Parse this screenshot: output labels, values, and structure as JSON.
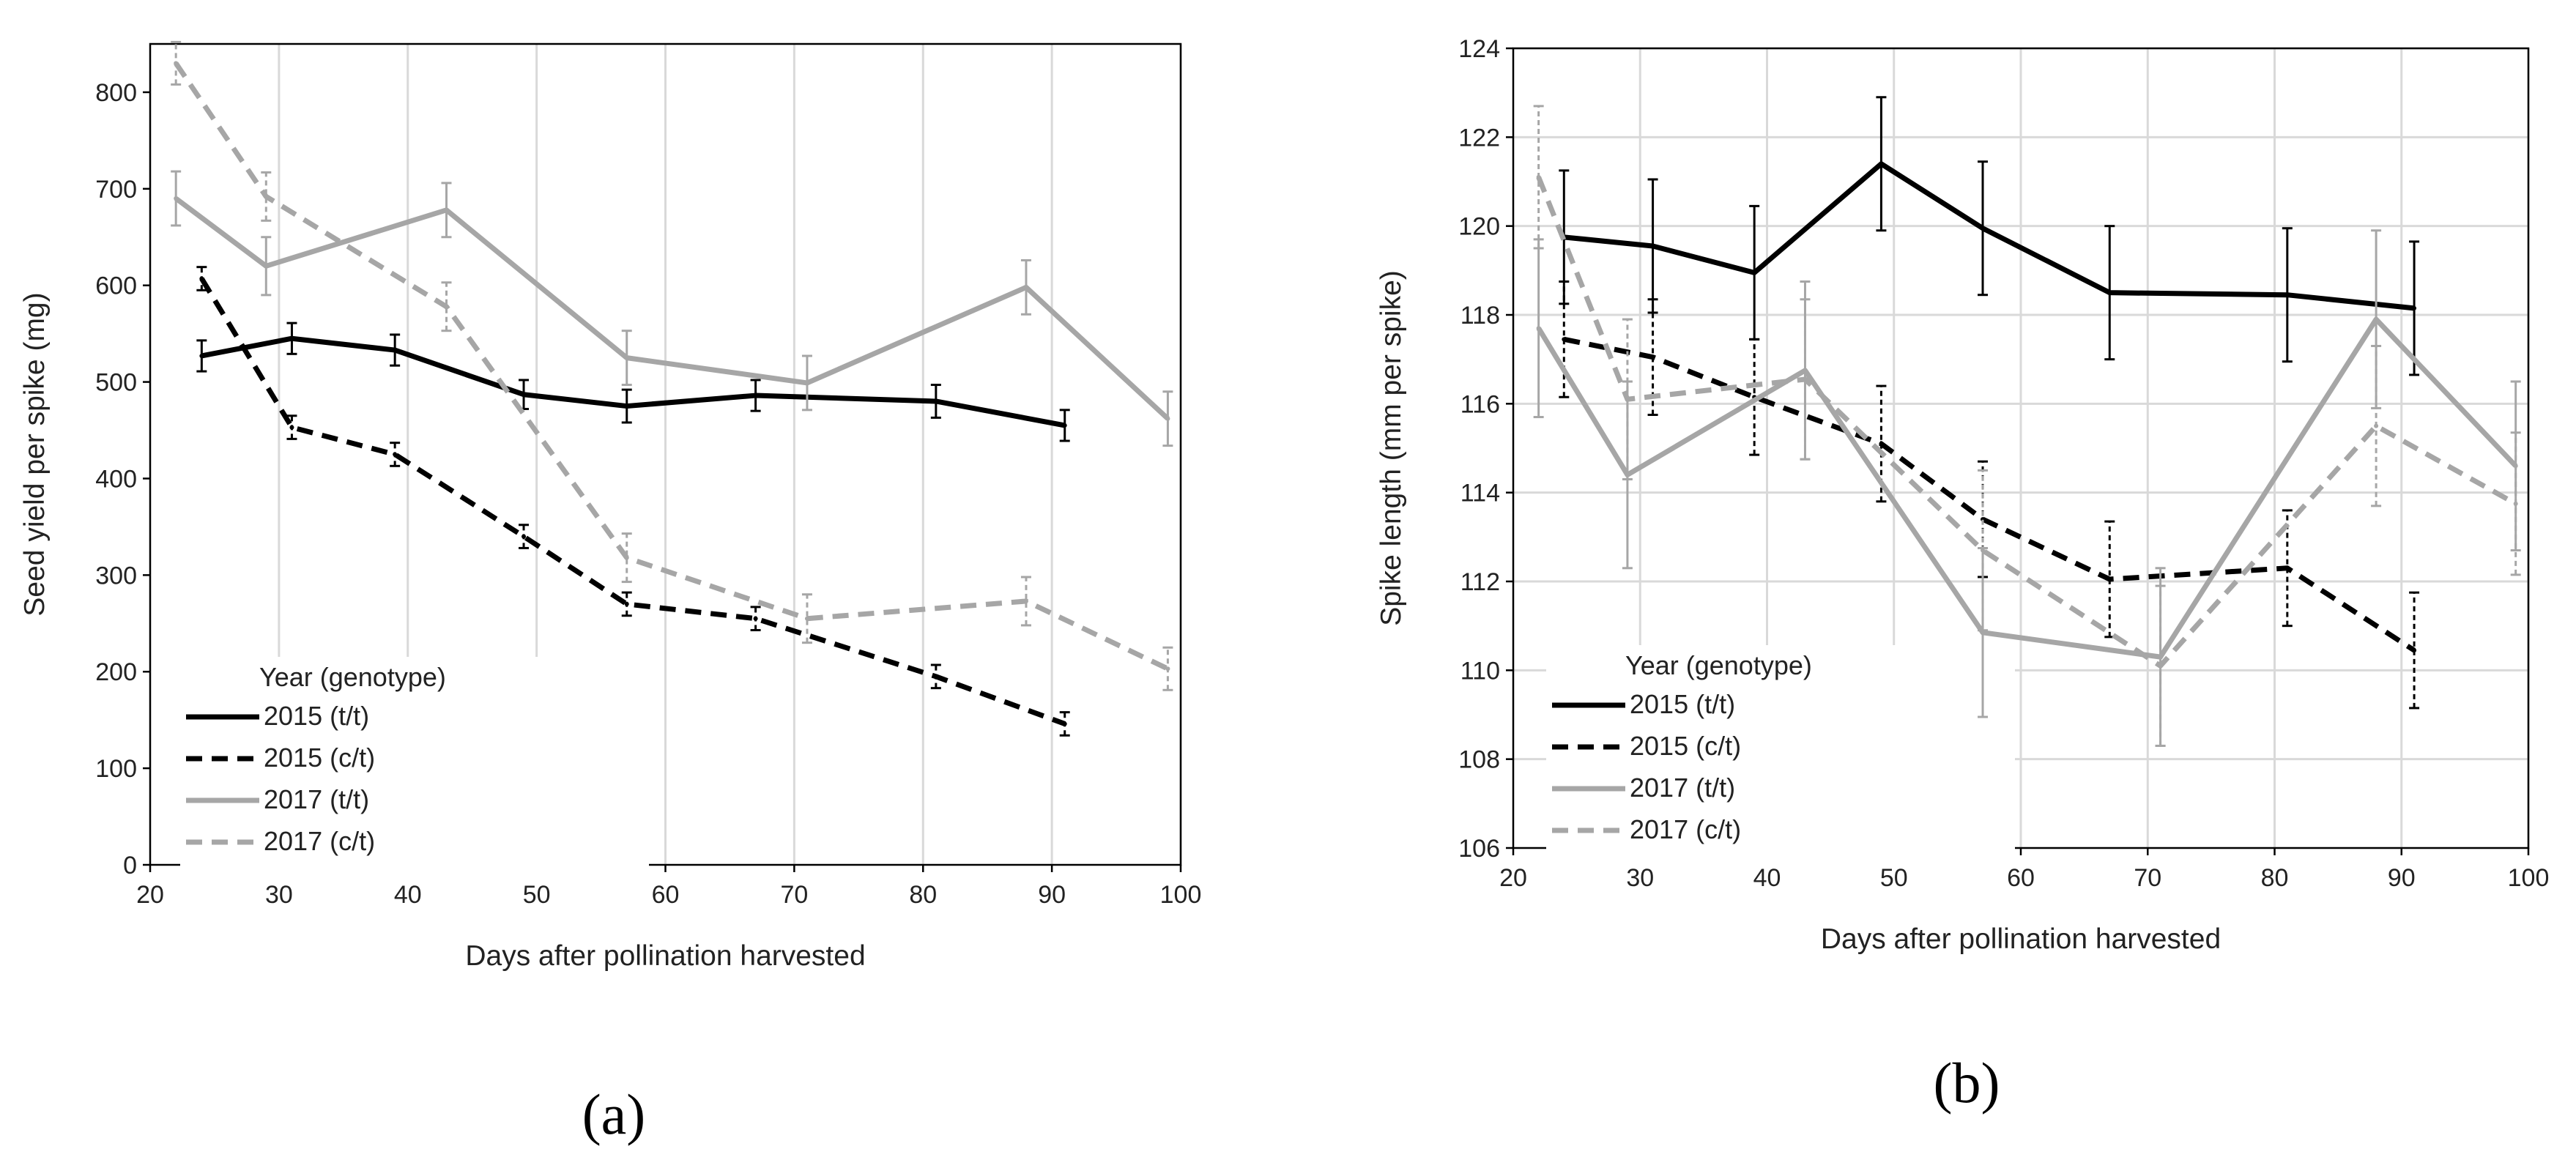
{
  "chart_data": [
    {
      "type": "line",
      "panel": "a",
      "caption": "(a)",
      "xlabel": "Days after pollination harvested",
      "ylabel": "Seed yield per spike (mg)",
      "xlim": [
        20,
        100
      ],
      "ylim": [
        0,
        850
      ],
      "xticks": [
        20,
        30,
        40,
        50,
        60,
        70,
        80,
        90,
        100
      ],
      "yticks": [
        0,
        100,
        200,
        300,
        400,
        500,
        600,
        700,
        800
      ],
      "grid": "vertical",
      "legend_title": "Year (genotype)",
      "legend_position": "bottom-left",
      "series": [
        {
          "name": "2015 (t/t)",
          "color": "#000000",
          "dashed": false,
          "x": [
            24,
            31,
            39,
            49,
            57,
            67,
            81,
            91
          ],
          "y": [
            527,
            545,
            533,
            487,
            475,
            486,
            480,
            455
          ],
          "err": [
            16,
            16,
            16,
            15,
            17,
            16,
            17,
            16
          ]
        },
        {
          "name": "2015 (c/t)",
          "color": "#000000",
          "dashed": true,
          "x": [
            24,
            31,
            39,
            49,
            57,
            67,
            81,
            91
          ],
          "y": [
            607,
            453,
            425,
            340,
            270,
            255,
            195,
            146
          ],
          "err": [
            12,
            12,
            12,
            12,
            12,
            12,
            12,
            12
          ]
        },
        {
          "name": "2017 (t/t)",
          "color": "#a6a6a6",
          "dashed": false,
          "x": [
            22,
            29,
            43,
            57,
            71,
            88,
            99
          ],
          "y": [
            690,
            620,
            678,
            525,
            499,
            598,
            462
          ],
          "err": [
            28,
            30,
            28,
            28,
            28,
            28,
            28
          ]
        },
        {
          "name": "2017 (c/t)",
          "color": "#a6a6a6",
          "dashed": true,
          "x": [
            22,
            29,
            43,
            57,
            71,
            88,
            99
          ],
          "y": [
            830,
            692,
            578,
            318,
            255,
            273,
            203
          ],
          "err": [
            22,
            25,
            25,
            25,
            25,
            25,
            22
          ]
        }
      ]
    },
    {
      "type": "line",
      "panel": "b",
      "caption": "(b)",
      "xlabel": "Days after pollination harvested",
      "ylabel": "Spike length (mm per spike)",
      "xlim": [
        20,
        100
      ],
      "ylim": [
        106,
        124
      ],
      "xticks": [
        20,
        30,
        40,
        50,
        60,
        70,
        80,
        90,
        100
      ],
      "yticks": [
        106,
        108,
        110,
        112,
        114,
        116,
        118,
        120,
        122,
        124
      ],
      "grid": "both",
      "legend_title": "Year (genotype)",
      "legend_position": "bottom-left",
      "series": [
        {
          "name": "2015 (t/t)",
          "color": "#000000",
          "dashed": false,
          "x": [
            24,
            31,
            39,
            49,
            57,
            67,
            81,
            91
          ],
          "y": [
            119.75,
            119.55,
            118.95,
            121.4,
            119.95,
            118.5,
            118.45,
            118.15
          ],
          "err": [
            1.5,
            1.5,
            1.5,
            1.5,
            1.5,
            1.5,
            1.5,
            1.5
          ]
        },
        {
          "name": "2015 (c/t)",
          "color": "#000000",
          "dashed": true,
          "x": [
            24,
            31,
            39,
            49,
            57,
            67,
            81,
            91
          ],
          "y": [
            117.45,
            117.05,
            116.15,
            115.1,
            113.4,
            112.05,
            112.3,
            110.45
          ],
          "err": [
            1.3,
            1.3,
            1.3,
            1.3,
            1.3,
            1.3,
            1.3,
            1.3
          ]
        },
        {
          "name": "2017 (t/t)",
          "color": "#a6a6a6",
          "dashed": false,
          "x": [
            22,
            29,
            43,
            57,
            71,
            88,
            99
          ],
          "y": [
            117.7,
            114.4,
            116.75,
            110.85,
            110.3,
            117.9,
            114.6
          ],
          "err": [
            2.0,
            2.1,
            2.0,
            1.9,
            2.0,
            2.0,
            1.9
          ]
        },
        {
          "name": "2017 (c/t)",
          "color": "#a6a6a6",
          "dashed": true,
          "x": [
            22,
            29,
            43,
            57,
            71,
            88,
            99
          ],
          "y": [
            121.1,
            116.1,
            116.55,
            112.7,
            110.1,
            115.5,
            113.75
          ],
          "err": [
            1.6,
            1.8,
            1.8,
            1.8,
            1.8,
            1.8,
            1.6
          ]
        }
      ]
    }
  ]
}
